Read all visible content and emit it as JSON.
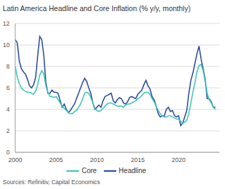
{
  "chart_data": {
    "type": "line",
    "title": "Latin America Headline and Core Inflation (% y/y, monthly)",
    "source": "Sources: Refinitiv, Capital Economics",
    "x": [
      2000,
      2000.25,
      2000.5,
      2000.75,
      2001,
      2001.25,
      2001.5,
      2001.75,
      2002,
      2002.25,
      2002.5,
      2002.75,
      2003,
      2003.25,
      2003.5,
      2003.75,
      2004,
      2004.25,
      2004.5,
      2004.75,
      2005,
      2005.25,
      2005.5,
      2005.75,
      2006,
      2006.25,
      2006.5,
      2006.75,
      2007,
      2007.25,
      2007.5,
      2007.75,
      2008,
      2008.25,
      2008.5,
      2008.75,
      2009,
      2009.25,
      2009.5,
      2009.75,
      2010,
      2010.25,
      2010.5,
      2010.75,
      2011,
      2011.25,
      2011.5,
      2011.75,
      2012,
      2012.25,
      2012.5,
      2012.75,
      2013,
      2013.25,
      2013.5,
      2013.75,
      2014,
      2014.25,
      2014.5,
      2014.75,
      2015,
      2015.25,
      2015.5,
      2015.75,
      2016,
      2016.25,
      2016.5,
      2016.75,
      2017,
      2017.25,
      2017.5,
      2017.75,
      2018,
      2018.25,
      2018.5,
      2018.75,
      2019,
      2019.25,
      2019.5,
      2019.75,
      2020,
      2020.25,
      2020.5,
      2020.75,
      2021,
      2021.25,
      2021.5,
      2021.75,
      2022,
      2022.25,
      2022.5,
      2022.75,
      2023,
      2023.25,
      2023.5,
      2023.75,
      2024,
      2024.25,
      2024.5
    ],
    "series": [
      {
        "name": "Headline",
        "color": "#2b4ba0",
        "values": [
          10.5,
          10.2,
          8.5,
          7.8,
          7.5,
          7.3,
          6.8,
          6.2,
          6.0,
          6.3,
          7.0,
          9.0,
          10.8,
          10.5,
          9.0,
          6.5,
          5.5,
          5.5,
          5.8,
          5.6,
          5.6,
          5.5,
          4.8,
          4.2,
          4.5,
          4.0,
          3.7,
          3.9,
          4.2,
          4.5,
          5.0,
          5.5,
          6.0,
          6.5,
          6.9,
          6.6,
          6.0,
          5.5,
          4.6,
          4.0,
          4.2,
          4.4,
          4.2,
          4.8,
          5.2,
          5.3,
          5.4,
          5.5,
          4.8,
          4.6,
          4.9,
          5.1,
          5.0,
          4.6,
          4.5,
          4.7,
          5.1,
          5.2,
          5.1,
          5.0,
          5.4,
          5.6,
          5.8,
          6.3,
          6.7,
          6.2,
          5.9,
          5.2,
          4.9,
          4.3,
          3.6,
          3.3,
          3.4,
          3.4,
          4.0,
          4.2,
          3.8,
          3.9,
          3.4,
          3.3,
          3.4,
          2.5,
          2.7,
          3.3,
          3.9,
          5.5,
          6.7,
          7.4,
          8.3,
          9.2,
          9.9,
          8.7,
          7.8,
          6.8,
          5.0,
          5.0,
          4.7,
          4.2,
          4.2
        ]
      },
      {
        "name": "Core",
        "color": "#3cc8b4",
        "values": [
          8.0,
          7.0,
          6.4,
          6.0,
          5.8,
          5.7,
          5.6,
          5.6,
          5.5,
          5.4,
          5.7,
          6.3,
          7.2,
          7.6,
          7.3,
          6.2,
          5.6,
          5.2,
          5.2,
          5.1,
          5.2,
          4.9,
          4.6,
          4.3,
          4.1,
          3.9,
          3.7,
          3.6,
          3.6,
          3.8,
          3.9,
          4.2,
          4.5,
          5.0,
          5.5,
          5.6,
          5.5,
          5.1,
          4.6,
          4.1,
          3.9,
          3.8,
          3.9,
          4.1,
          4.3,
          4.5,
          4.6,
          4.6,
          4.5,
          4.4,
          4.3,
          4.3,
          4.3,
          4.2,
          4.4,
          4.5,
          4.5,
          4.6,
          4.7,
          4.8,
          5.0,
          5.1,
          5.3,
          5.5,
          5.6,
          5.6,
          5.4,
          5.0,
          4.7,
          4.3,
          3.9,
          3.6,
          3.4,
          3.3,
          3.3,
          3.4,
          3.4,
          3.3,
          3.2,
          3.1,
          3.1,
          2.9,
          2.7,
          2.8,
          3.0,
          3.6,
          4.6,
          5.6,
          6.5,
          7.5,
          8.1,
          8.2,
          7.6,
          6.6,
          5.5,
          4.9,
          4.6,
          4.2,
          4.0
        ]
      }
    ],
    "xlim": [
      2000,
      2025
    ],
    "xticks": [
      2000,
      2005,
      2010,
      2015,
      2020
    ],
    "ylim": [
      0,
      12
    ],
    "yticks": [
      0,
      2,
      4,
      6,
      8,
      10,
      12
    ],
    "grid": true,
    "legend": "bottom"
  }
}
